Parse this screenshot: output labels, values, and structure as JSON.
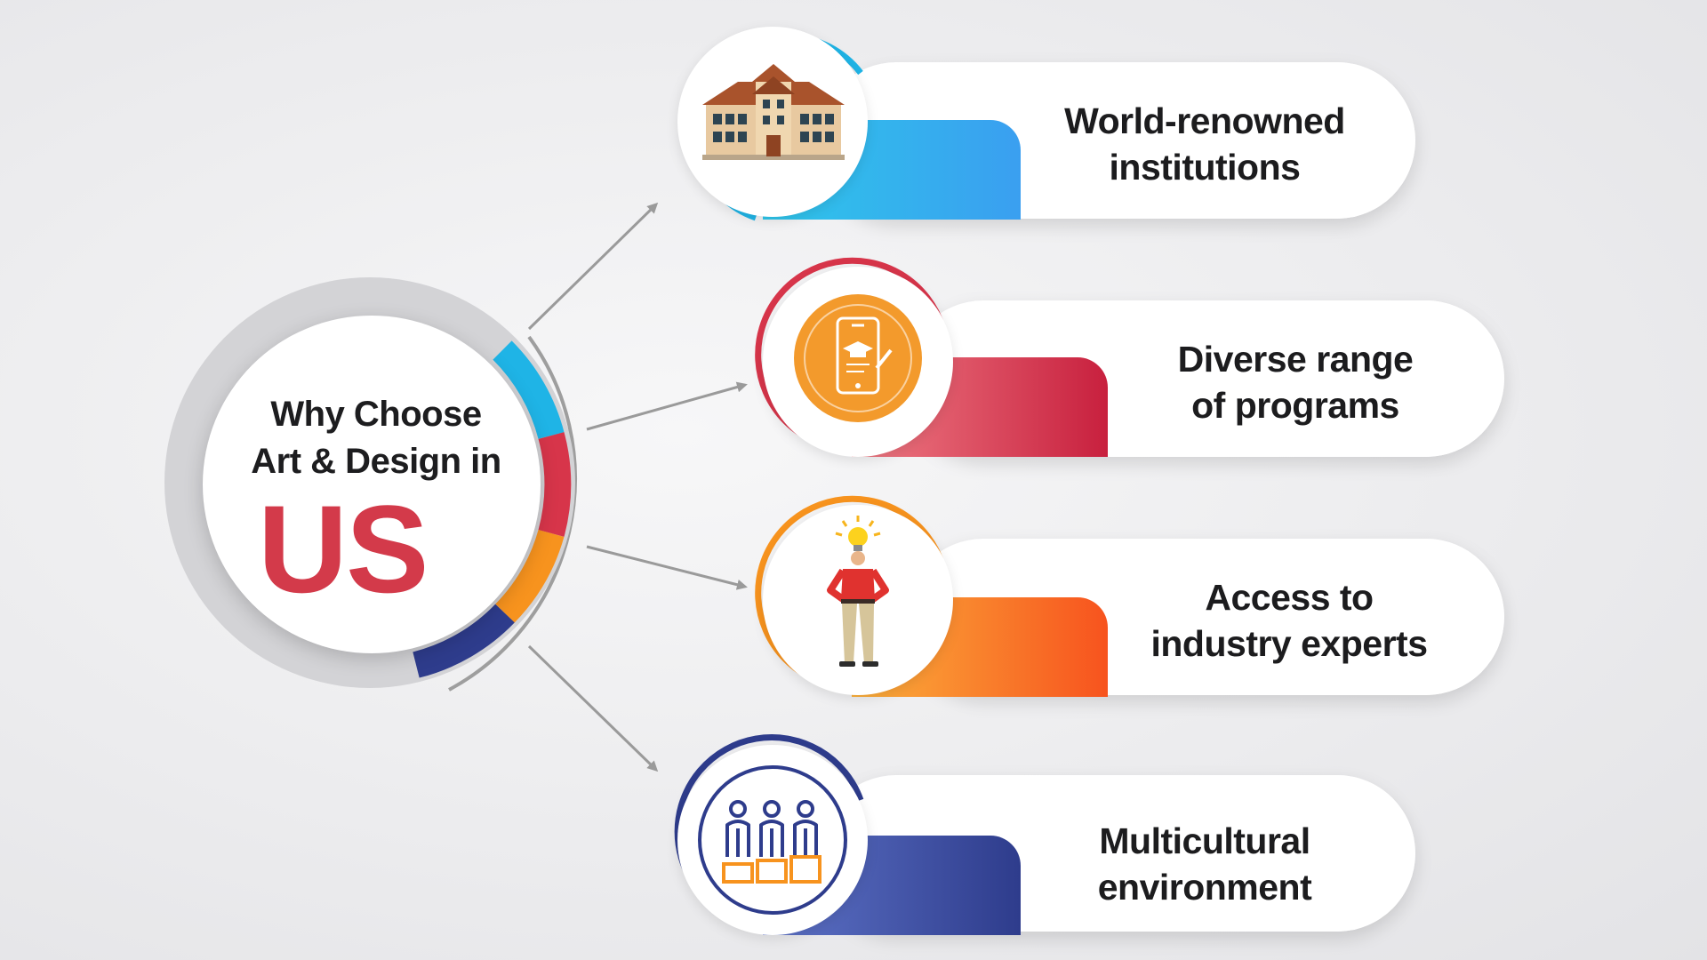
{
  "hub": {
    "title_line1": "Why Choose",
    "title_line2": "Art & Design in",
    "country": "US"
  },
  "items": [
    {
      "label_line1": "World-renowned",
      "label_line2": "institutions",
      "icon": "university-building-icon",
      "color": "#1fb4e6"
    },
    {
      "label_line1": "Diverse range",
      "label_line2": "of programs",
      "icon": "tablet-graduation-cap-icon",
      "color": "#d7354a"
    },
    {
      "label_line1": "Access to",
      "label_line2": "industry experts",
      "icon": "person-lightbulb-icon",
      "color": "#f7931e"
    },
    {
      "label_line1": "Multicultural",
      "label_line2": "environment",
      "icon": "group-of-people-icon",
      "color": "#2e3c8c"
    }
  ],
  "colors": {
    "blue": "#1fb4e6",
    "red": "#d7354a",
    "orange": "#f7931e",
    "navy": "#2e3c8c",
    "country_text": "#d33a4a"
  }
}
